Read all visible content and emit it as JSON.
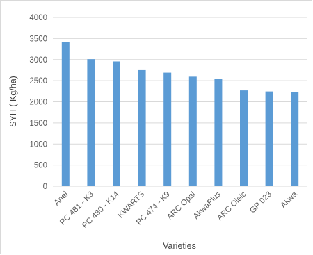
{
  "chart_data": {
    "type": "bar",
    "title": "",
    "xlabel": "Varieties",
    "ylabel": "SYH ( Kg/ha)",
    "categories": [
      "Anel",
      "PC 481 - K3",
      "PC 480 - K14",
      "KWARTS",
      "PC 474 - K9",
      "ARC Opal",
      "AkwaPlus",
      "ARC Oleic",
      "GP 023",
      "Akwa"
    ],
    "values": [
      3420,
      3010,
      2955,
      2750,
      2690,
      2595,
      2550,
      2270,
      2245,
      2235
    ],
    "ylim": [
      0,
      4000
    ],
    "yticks": [
      0,
      500,
      1000,
      1500,
      2000,
      2500,
      3000,
      3500,
      4000
    ],
    "grid": true,
    "legend": "none",
    "bar_color": "#5b9bd5"
  }
}
